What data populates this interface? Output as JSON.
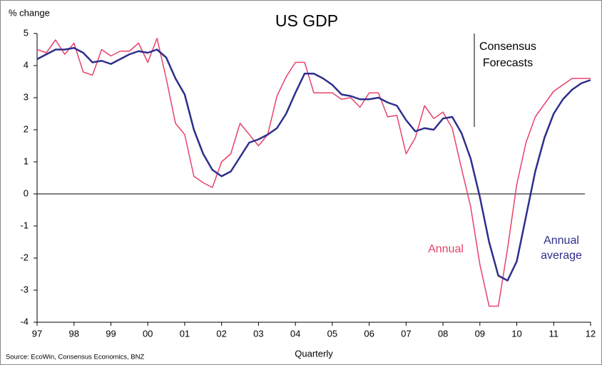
{
  "chart_data": {
    "type": "line",
    "title": "US GDP",
    "y_label": "% change",
    "x_label": "Quarterly",
    "source": "Source: EcoWin,  Consensus Economics, BNZ",
    "annotation": [
      "Consensus",
      "Forecasts"
    ],
    "x": [
      0,
      1,
      2,
      3,
      4,
      5,
      6,
      7,
      8,
      9,
      10,
      11,
      12,
      13,
      14,
      15,
      16,
      17,
      18,
      19,
      20,
      21,
      22,
      23,
      24,
      25,
      26,
      27,
      28,
      29,
      30,
      31,
      32,
      33,
      34,
      35,
      36,
      37,
      38,
      39,
      40,
      41,
      42,
      43,
      44,
      45,
      46,
      47,
      48,
      49,
      50,
      51,
      52,
      53,
      54,
      55,
      56,
      57,
      58,
      59,
      60
    ],
    "xlim": [
      0,
      60
    ],
    "xticks": [
      {
        "value": 0,
        "label": "97"
      },
      {
        "value": 4,
        "label": "98"
      },
      {
        "value": 8,
        "label": "99"
      },
      {
        "value": 12,
        "label": "00"
      },
      {
        "value": 16,
        "label": "01"
      },
      {
        "value": 20,
        "label": "02"
      },
      {
        "value": 24,
        "label": "03"
      },
      {
        "value": 28,
        "label": "04"
      },
      {
        "value": 32,
        "label": "05"
      },
      {
        "value": 36,
        "label": "06"
      },
      {
        "value": 40,
        "label": "07"
      },
      {
        "value": 44,
        "label": "08"
      },
      {
        "value": 48,
        "label": "09"
      },
      {
        "value": 52,
        "label": "10"
      },
      {
        "value": 56,
        "label": "11"
      },
      {
        "value": 60,
        "label": "12"
      }
    ],
    "ylim": [
      -4,
      5
    ],
    "yticks": [
      5,
      4,
      3,
      2,
      1,
      0,
      -1,
      -2,
      -3,
      -4
    ],
    "series": [
      {
        "name": "Annual",
        "color": "#e8426a",
        "values": [
          4.5,
          4.4,
          4.8,
          4.35,
          4.7,
          3.8,
          3.7,
          4.5,
          4.3,
          4.45,
          4.45,
          4.7,
          4.1,
          4.85,
          3.6,
          2.2,
          1.85,
          0.55,
          0.35,
          0.2,
          1.0,
          1.25,
          2.2,
          1.85,
          1.5,
          1.85,
          3.05,
          3.65,
          4.1,
          4.1,
          3.15,
          3.15,
          3.15,
          2.95,
          3.0,
          2.7,
          3.15,
          3.15,
          2.4,
          2.45,
          1.25,
          1.75,
          2.75,
          2.35,
          2.55,
          2.05,
          0.8,
          -0.4,
          -2.2,
          -3.5,
          -3.5,
          -1.7,
          0.3,
          1.6,
          2.4,
          2.8,
          3.2,
          3.4,
          3.6,
          3.6,
          3.6
        ]
      },
      {
        "name": "Annual average",
        "color": "#2e2e8c",
        "values": [
          4.2,
          4.35,
          4.5,
          4.5,
          4.55,
          4.4,
          4.1,
          4.15,
          4.05,
          4.2,
          4.35,
          4.45,
          4.4,
          4.5,
          4.25,
          3.6,
          3.1,
          2.0,
          1.25,
          0.75,
          0.55,
          0.7,
          1.15,
          1.6,
          1.7,
          1.85,
          2.05,
          2.5,
          3.15,
          3.75,
          3.75,
          3.6,
          3.4,
          3.1,
          3.05,
          2.95,
          2.95,
          3.0,
          2.85,
          2.75,
          2.3,
          1.95,
          2.05,
          2.0,
          2.35,
          2.4,
          1.9,
          1.1,
          -0.1,
          -1.5,
          -2.55,
          -2.7,
          -2.1,
          -0.7,
          0.7,
          1.75,
          2.5,
          2.95,
          3.25,
          3.45,
          3.55
        ]
      }
    ]
  }
}
